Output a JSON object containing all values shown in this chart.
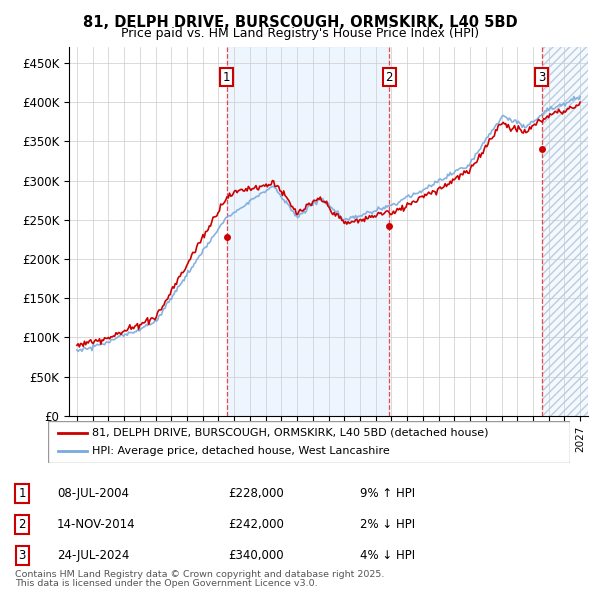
{
  "title": "81, DELPH DRIVE, BURSCOUGH, ORMSKIRK, L40 5BD",
  "subtitle": "Price paid vs. HM Land Registry's House Price Index (HPI)",
  "legend_line1": "81, DELPH DRIVE, BURSCOUGH, ORMSKIRK, L40 5BD (detached house)",
  "legend_line2": "HPI: Average price, detached house, West Lancashire",
  "footer_line1": "Contains HM Land Registry data © Crown copyright and database right 2025.",
  "footer_line2": "This data is licensed under the Open Government Licence v3.0.",
  "sale_points": [
    {
      "num": 1,
      "date": "08-JUL-2004",
      "price": 228000,
      "pct": "9%",
      "dir": "↑",
      "x": 2004.52
    },
    {
      "num": 2,
      "date": "14-NOV-2014",
      "price": 242000,
      "pct": "2%",
      "dir": "↓",
      "x": 2014.87
    },
    {
      "num": 3,
      "date": "24-JUL-2024",
      "price": 340000,
      "pct": "4%",
      "dir": "↓",
      "x": 2024.56
    }
  ],
  "xmin": 1994.5,
  "xmax": 2027.5,
  "ymin": 0,
  "ymax": 470000,
  "yticks": [
    0,
    50000,
    100000,
    150000,
    200000,
    250000,
    300000,
    350000,
    400000,
    450000
  ],
  "ytick_labels": [
    "£0",
    "£50K",
    "£100K",
    "£150K",
    "£200K",
    "£250K",
    "£300K",
    "£350K",
    "£400K",
    "£450K"
  ],
  "red_line_color": "#cc0000",
  "blue_line_color": "#7aaadd",
  "shade_color": "#ddeeff",
  "grid_color": "#cccccc",
  "background_color": "#ffffff",
  "sale_box_color": "#cc0000",
  "dashed_line_color": "#ee3333",
  "shade_between_sales": true,
  "sale1_x": 2004.52,
  "sale2_x": 2014.87,
  "sale3_x": 2024.56
}
